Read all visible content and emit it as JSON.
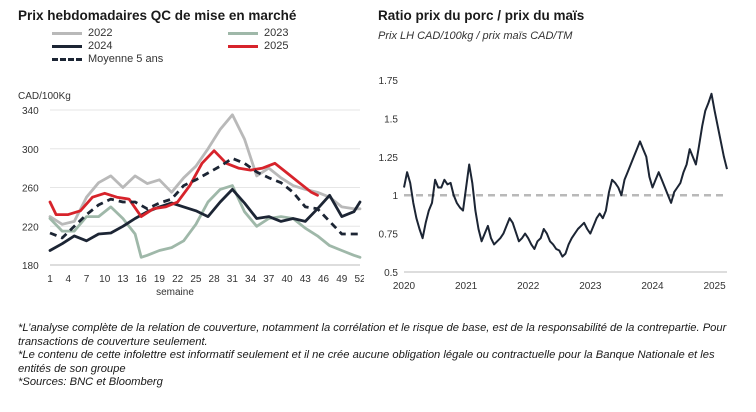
{
  "left_chart": {
    "title": "Prix hebdomadaires QC de mise en marché",
    "legend": [
      {
        "label": "2022",
        "color": "#b9b9b9",
        "dashed": false
      },
      {
        "label": "2023",
        "color": "#9fb8a9",
        "dashed": false
      },
      {
        "label": "2024",
        "color": "#1c2534",
        "dashed": false
      },
      {
        "label": "2025",
        "color": "#d7232b",
        "dashed": false
      },
      {
        "label": "Moyenne 5 ans",
        "color": "#1c2534",
        "dashed": true
      }
    ]
  },
  "right_chart": {
    "title": "Ratio prix du porc / prix du maïs",
    "subtitle": "Prix LH CAD/100kg / prix maïs CAD/TM"
  },
  "notes": [
    "*L’analyse complète de la relation de couverture, notamment la corrélation et le risque de base, est de la responsabilité de la contrepartie. Pour transactions de couverture seulement.",
    "*Le contenu de cette infolettre est informatif seulement et il ne crée aucune obligation légale ou contractuelle pour la Banque Nationale et les entités de son groupe",
    "*Sources: BNC et Bloomberg"
  ],
  "chart_data": [
    {
      "type": "line",
      "title": "Prix hebdomadaires QC de mise en marché",
      "ylabel": "CAD/100Kg",
      "xlabel": "semaine",
      "ylim": [
        180,
        340
      ],
      "yticks": [
        180,
        220,
        260,
        300,
        340
      ],
      "xlim": [
        1,
        52
      ],
      "xticks": [
        1,
        4,
        7,
        10,
        13,
        16,
        19,
        22,
        25,
        28,
        31,
        34,
        37,
        40,
        43,
        46,
        49,
        52
      ],
      "grid": "horizontal",
      "legend_position": "top",
      "series": [
        {
          "name": "2022",
          "color": "#b9b9b9",
          "dashed": false,
          "x": [
            1,
            3,
            5,
            7,
            9,
            11,
            13,
            15,
            17,
            19,
            21,
            23,
            25,
            27,
            29,
            31,
            33,
            35,
            37,
            39,
            41,
            43,
            45,
            47,
            49,
            51,
            52
          ],
          "y": [
            230,
            222,
            225,
            250,
            265,
            272,
            260,
            272,
            264,
            268,
            255,
            270,
            282,
            300,
            320,
            335,
            310,
            272,
            280,
            270,
            262,
            258,
            255,
            250,
            240,
            238,
            238
          ]
        },
        {
          "name": "2023",
          "color": "#9fb8a9",
          "dashed": false,
          "x": [
            1,
            3,
            5,
            7,
            9,
            11,
            13,
            15,
            16,
            17,
            19,
            21,
            23,
            25,
            27,
            29,
            31,
            33,
            35,
            37,
            39,
            41,
            43,
            45,
            47,
            49,
            51,
            52
          ],
          "y": [
            228,
            215,
            215,
            230,
            230,
            240,
            228,
            212,
            188,
            190,
            195,
            198,
            205,
            222,
            245,
            258,
            262,
            235,
            220,
            228,
            230,
            228,
            218,
            210,
            200,
            195,
            190,
            188
          ]
        },
        {
          "name": "2024",
          "color": "#1c2534",
          "dashed": false,
          "x": [
            1,
            3,
            5,
            7,
            9,
            11,
            13,
            15,
            17,
            19,
            21,
            23,
            25,
            27,
            29,
            31,
            33,
            35,
            37,
            39,
            41,
            43,
            45,
            47,
            49,
            51,
            52
          ],
          "y": [
            195,
            202,
            210,
            205,
            212,
            213,
            220,
            228,
            235,
            240,
            244,
            240,
            236,
            230,
            245,
            258,
            244,
            228,
            230,
            225,
            228,
            225,
            238,
            252,
            230,
            235,
            245
          ]
        },
        {
          "name": "2025",
          "color": "#d7232b",
          "dashed": false,
          "x": [
            1,
            2,
            4,
            6,
            8,
            10,
            12,
            14,
            16,
            18,
            20,
            22,
            24,
            26,
            28,
            30,
            32,
            34,
            36,
            38,
            40,
            42,
            44,
            45
          ],
          "y": [
            245,
            232,
            232,
            236,
            250,
            254,
            250,
            248,
            230,
            238,
            240,
            245,
            262,
            285,
            298,
            285,
            280,
            278,
            280,
            285,
            275,
            265,
            255,
            252
          ]
        },
        {
          "name": "Moyenne 5 ans",
          "color": "#1c2534",
          "dashed": true,
          "x": [
            1,
            3,
            5,
            7,
            9,
            11,
            13,
            15,
            17,
            19,
            21,
            23,
            25,
            27,
            29,
            31,
            33,
            35,
            37,
            39,
            41,
            43,
            45,
            47,
            49,
            51,
            52
          ],
          "y": [
            213,
            208,
            220,
            232,
            242,
            248,
            245,
            245,
            238,
            244,
            248,
            262,
            268,
            275,
            282,
            290,
            285,
            276,
            270,
            265,
            255,
            240,
            238,
            225,
            212,
            212,
            212
          ]
        }
      ]
    },
    {
      "type": "line",
      "title": "Ratio prix du porc / prix du maïs",
      "subtitle": "Prix LH CAD/100kg / prix maïs CAD/TM",
      "ylim": [
        0.5,
        1.75
      ],
      "yticks": [
        0.5,
        0.75,
        1,
        1.25,
        1.5,
        1.75
      ],
      "xlim": [
        2020.0,
        2025.2
      ],
      "xticks": [
        2020,
        2021,
        2022,
        2023,
        2024,
        2025
      ],
      "reference_line": {
        "y": 1,
        "color": "#b9b9b9",
        "dashed": true
      },
      "grid": "none",
      "series": [
        {
          "name": "",
          "color": "#1c2534",
          "x": [
            2020.0,
            2020.05,
            2020.1,
            2020.15,
            2020.2,
            2020.25,
            2020.3,
            2020.35,
            2020.4,
            2020.45,
            2020.5,
            2020.55,
            2020.6,
            2020.65,
            2020.7,
            2020.75,
            2020.8,
            2020.85,
            2020.9,
            2020.95,
            2021.0,
            2021.05,
            2021.1,
            2021.15,
            2021.2,
            2021.25,
            2021.3,
            2021.35,
            2021.4,
            2021.45,
            2021.5,
            2021.55,
            2021.6,
            2021.65,
            2021.7,
            2021.75,
            2021.8,
            2021.85,
            2021.9,
            2021.95,
            2022.0,
            2022.05,
            2022.1,
            2022.15,
            2022.2,
            2022.25,
            2022.3,
            2022.35,
            2022.4,
            2022.45,
            2022.5,
            2022.55,
            2022.6,
            2022.65,
            2022.7,
            2022.75,
            2022.8,
            2022.85,
            2022.9,
            2022.95,
            2023.0,
            2023.05,
            2023.1,
            2023.15,
            2023.2,
            2023.25,
            2023.3,
            2023.35,
            2023.4,
            2023.45,
            2023.5,
            2023.55,
            2023.6,
            2023.65,
            2023.7,
            2023.75,
            2023.8,
            2023.85,
            2023.9,
            2023.95,
            2024.0,
            2024.05,
            2024.1,
            2024.15,
            2024.2,
            2024.25,
            2024.3,
            2024.35,
            2024.4,
            2024.45,
            2024.5,
            2024.55,
            2024.6,
            2024.65,
            2024.7,
            2024.75,
            2024.8,
            2024.85,
            2024.9,
            2024.95,
            2025.0,
            2025.05,
            2025.1,
            2025.15,
            2025.2
          ],
          "y": [
            1.05,
            1.15,
            1.08,
            0.95,
            0.85,
            0.78,
            0.72,
            0.82,
            0.9,
            0.95,
            1.1,
            1.05,
            1.05,
            1.1,
            1.07,
            1.08,
            1.0,
            0.95,
            0.92,
            0.9,
            1.05,
            1.2,
            1.08,
            0.9,
            0.78,
            0.7,
            0.75,
            0.8,
            0.72,
            0.68,
            0.7,
            0.72,
            0.75,
            0.8,
            0.85,
            0.82,
            0.76,
            0.7,
            0.72,
            0.75,
            0.72,
            0.68,
            0.65,
            0.7,
            0.72,
            0.78,
            0.75,
            0.7,
            0.68,
            0.65,
            0.64,
            0.6,
            0.62,
            0.68,
            0.72,
            0.75,
            0.78,
            0.8,
            0.82,
            0.78,
            0.75,
            0.8,
            0.85,
            0.88,
            0.85,
            0.9,
            1.02,
            1.1,
            1.08,
            1.05,
            1.0,
            1.1,
            1.15,
            1.2,
            1.25,
            1.3,
            1.35,
            1.3,
            1.25,
            1.12,
            1.05,
            1.1,
            1.15,
            1.1,
            1.05,
            1.0,
            0.95,
            1.02,
            1.05,
            1.08,
            1.15,
            1.2,
            1.3,
            1.25,
            1.2,
            1.32,
            1.45,
            1.55,
            1.6,
            1.66,
            1.55,
            1.45,
            1.35,
            1.25,
            1.17
          ]
        }
      ]
    }
  ]
}
